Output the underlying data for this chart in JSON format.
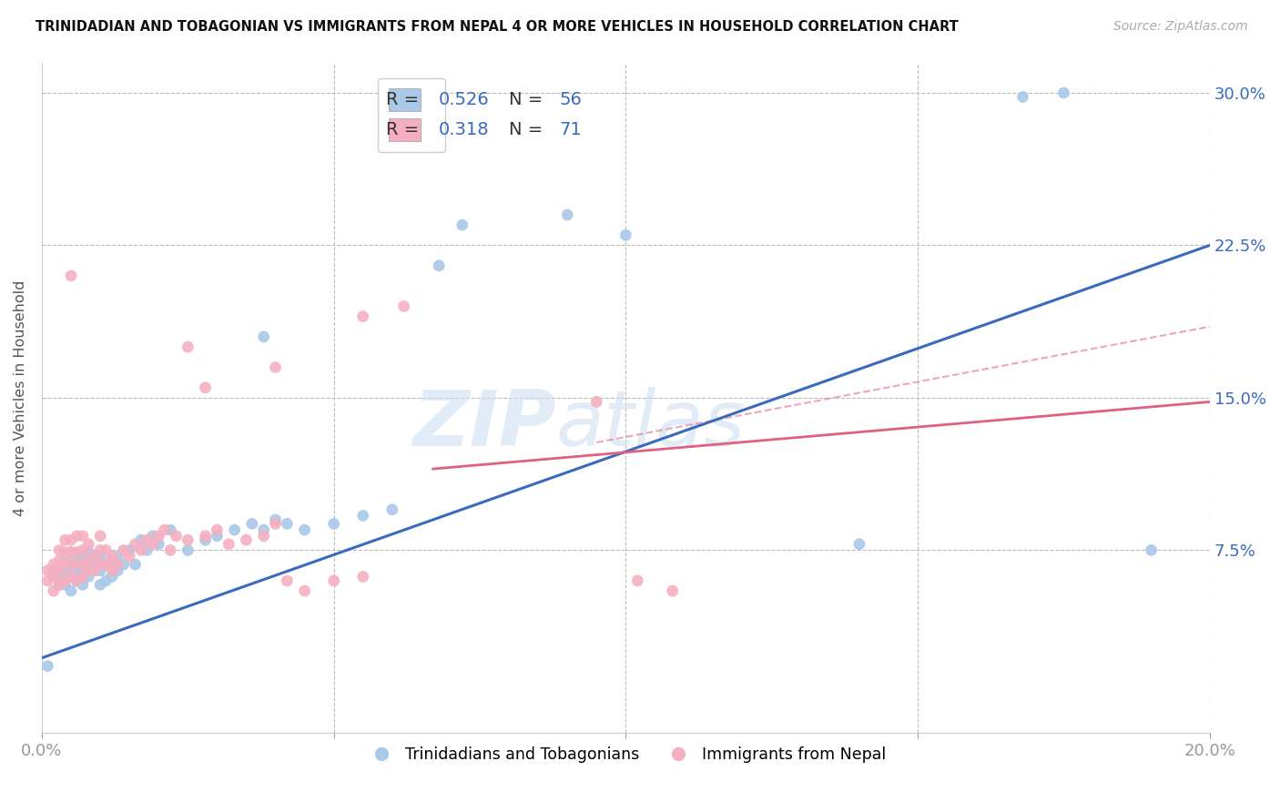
{
  "title": "TRINIDADIAN AND TOBAGONIAN VS IMMIGRANTS FROM NEPAL 4 OR MORE VEHICLES IN HOUSEHOLD CORRELATION CHART",
  "source": "Source: ZipAtlas.com",
  "ylabel": "4 or more Vehicles in Household",
  "ytick_values": [
    0.0,
    0.075,
    0.15,
    0.225,
    0.3
  ],
  "ytick_labels": [
    "",
    "7.5%",
    "15.0%",
    "22.5%",
    "30.0%"
  ],
  "xmin": 0.0,
  "xmax": 0.2,
  "ymin": -0.015,
  "ymax": 0.315,
  "watermark_zip": "ZIP",
  "watermark_atlas": "atlas",
  "legend_r_blue": "R = 0.526",
  "legend_n_blue": "N = 56",
  "legend_r_pink": "R = 0.318",
  "legend_n_pink": "N = 71",
  "blue_dot_color": "#aac8e8",
  "pink_dot_color": "#f5afc0",
  "blue_line_color": "#3a6abf",
  "pink_line_color": "#e06080",
  "legend_text_color": "#3a6abf",
  "legend_black": "#333333",
  "blue_line": [
    [
      0.0,
      0.022
    ],
    [
      0.2,
      0.225
    ]
  ],
  "pink_solid_line": [
    [
      0.067,
      0.115
    ],
    [
      0.2,
      0.148
    ]
  ],
  "pink_dash_line": [
    [
      0.095,
      0.128
    ],
    [
      0.2,
      0.185
    ]
  ],
  "blue_scatter": [
    [
      0.001,
      0.018
    ],
    [
      0.002,
      0.065
    ],
    [
      0.003,
      0.058
    ],
    [
      0.003,
      0.062
    ],
    [
      0.004,
      0.058
    ],
    [
      0.004,
      0.065
    ],
    [
      0.004,
      0.072
    ],
    [
      0.005,
      0.055
    ],
    [
      0.005,
      0.062
    ],
    [
      0.005,
      0.068
    ],
    [
      0.005,
      0.074
    ],
    [
      0.006,
      0.06
    ],
    [
      0.006,
      0.065
    ],
    [
      0.006,
      0.07
    ],
    [
      0.007,
      0.058
    ],
    [
      0.007,
      0.065
    ],
    [
      0.007,
      0.072
    ],
    [
      0.008,
      0.062
    ],
    [
      0.008,
      0.068
    ],
    [
      0.008,
      0.074
    ],
    [
      0.009,
      0.065
    ],
    [
      0.009,
      0.07
    ],
    [
      0.01,
      0.058
    ],
    [
      0.01,
      0.065
    ],
    [
      0.01,
      0.072
    ],
    [
      0.011,
      0.06
    ],
    [
      0.011,
      0.068
    ],
    [
      0.012,
      0.062
    ],
    [
      0.012,
      0.07
    ],
    [
      0.013,
      0.065
    ],
    [
      0.013,
      0.072
    ],
    [
      0.014,
      0.068
    ],
    [
      0.015,
      0.075
    ],
    [
      0.016,
      0.068
    ],
    [
      0.017,
      0.08
    ],
    [
      0.018,
      0.075
    ],
    [
      0.019,
      0.082
    ],
    [
      0.02,
      0.078
    ],
    [
      0.022,
      0.085
    ],
    [
      0.025,
      0.075
    ],
    [
      0.028,
      0.08
    ],
    [
      0.03,
      0.082
    ],
    [
      0.033,
      0.085
    ],
    [
      0.036,
      0.088
    ],
    [
      0.038,
      0.085
    ],
    [
      0.04,
      0.09
    ],
    [
      0.042,
      0.088
    ],
    [
      0.045,
      0.085
    ],
    [
      0.05,
      0.088
    ],
    [
      0.055,
      0.092
    ],
    [
      0.06,
      0.095
    ],
    [
      0.038,
      0.18
    ],
    [
      0.068,
      0.215
    ],
    [
      0.072,
      0.235
    ],
    [
      0.09,
      0.24
    ],
    [
      0.1,
      0.23
    ],
    [
      0.14,
      0.078
    ],
    [
      0.168,
      0.298
    ],
    [
      0.175,
      0.3
    ],
    [
      0.19,
      0.075
    ]
  ],
  "pink_scatter": [
    [
      0.001,
      0.06
    ],
    [
      0.001,
      0.065
    ],
    [
      0.002,
      0.055
    ],
    [
      0.002,
      0.062
    ],
    [
      0.002,
      0.068
    ],
    [
      0.003,
      0.058
    ],
    [
      0.003,
      0.065
    ],
    [
      0.003,
      0.07
    ],
    [
      0.003,
      0.075
    ],
    [
      0.004,
      0.06
    ],
    [
      0.004,
      0.068
    ],
    [
      0.004,
      0.074
    ],
    [
      0.004,
      0.08
    ],
    [
      0.005,
      0.062
    ],
    [
      0.005,
      0.068
    ],
    [
      0.005,
      0.074
    ],
    [
      0.005,
      0.08
    ],
    [
      0.006,
      0.06
    ],
    [
      0.006,
      0.068
    ],
    [
      0.006,
      0.074
    ],
    [
      0.006,
      0.082
    ],
    [
      0.007,
      0.062
    ],
    [
      0.007,
      0.068
    ],
    [
      0.007,
      0.075
    ],
    [
      0.007,
      0.082
    ],
    [
      0.008,
      0.065
    ],
    [
      0.008,
      0.07
    ],
    [
      0.008,
      0.078
    ],
    [
      0.009,
      0.065
    ],
    [
      0.009,
      0.072
    ],
    [
      0.01,
      0.068
    ],
    [
      0.01,
      0.075
    ],
    [
      0.01,
      0.082
    ],
    [
      0.011,
      0.068
    ],
    [
      0.011,
      0.075
    ],
    [
      0.012,
      0.065
    ],
    [
      0.012,
      0.072
    ],
    [
      0.013,
      0.068
    ],
    [
      0.014,
      0.075
    ],
    [
      0.015,
      0.072
    ],
    [
      0.016,
      0.078
    ],
    [
      0.017,
      0.075
    ],
    [
      0.018,
      0.08
    ],
    [
      0.019,
      0.078
    ],
    [
      0.02,
      0.082
    ],
    [
      0.021,
      0.085
    ],
    [
      0.022,
      0.075
    ],
    [
      0.023,
      0.082
    ],
    [
      0.025,
      0.08
    ],
    [
      0.028,
      0.082
    ],
    [
      0.03,
      0.085
    ],
    [
      0.032,
      0.078
    ],
    [
      0.035,
      0.08
    ],
    [
      0.038,
      0.082
    ],
    [
      0.04,
      0.088
    ],
    [
      0.042,
      0.06
    ],
    [
      0.045,
      0.055
    ],
    [
      0.05,
      0.06
    ],
    [
      0.055,
      0.062
    ],
    [
      0.005,
      0.21
    ],
    [
      0.025,
      0.175
    ],
    [
      0.028,
      0.155
    ],
    [
      0.04,
      0.165
    ],
    [
      0.055,
      0.19
    ],
    [
      0.062,
      0.195
    ],
    [
      0.095,
      0.148
    ],
    [
      0.102,
      0.06
    ],
    [
      0.108,
      0.055
    ]
  ]
}
